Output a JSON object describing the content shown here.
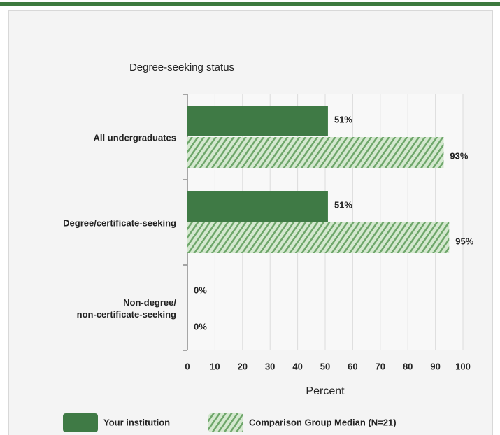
{
  "chart_data": {
    "type": "hbar",
    "title": "Degree-seeking status",
    "categories": [
      "All undergraduates",
      "Degree/certificate-seeking",
      "Non-degree/\nnon-certificate-seeking"
    ],
    "series": [
      {
        "name": "Your institution",
        "color": "#3f7a45",
        "values": [
          51,
          51,
          0
        ],
        "value_labels": [
          "51%",
          "51%",
          "0%"
        ]
      },
      {
        "name": "Comparison Group Median (N=21)",
        "color": "#6ea66a",
        "values": [
          93,
          95,
          0
        ],
        "value_labels": [
          "93%",
          "95%",
          "0%"
        ]
      }
    ],
    "xlabel": "Percent",
    "xlim": [
      0,
      100
    ],
    "xticks": [
      0,
      10,
      20,
      30,
      40,
      50,
      60,
      70,
      80,
      90,
      100
    ],
    "grid": true
  }
}
